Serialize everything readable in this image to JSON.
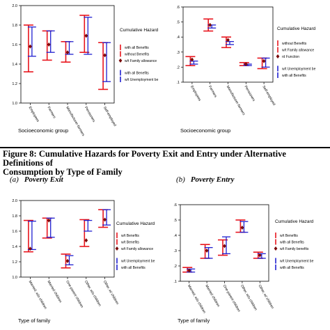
{
  "caption": {
    "line1": "Figure 8: Cumulative Hazards for Poverty Exit and Entry under Alternative Definitions of",
    "line2": "Consumption by Type of Family"
  },
  "panels": {
    "a": {
      "letter": "(a)",
      "title": "Poverty Exit"
    },
    "b": {
      "letter": "(b)",
      "title": "Poverty Entry"
    }
  },
  "colors": {
    "red": "#e8141c",
    "blue": "#1f1fd0",
    "marker": "#7a0a0a"
  },
  "chart_data": [
    {
      "id": "top-left",
      "type": "error-bar",
      "xlabel": "Socioeconomic group",
      "ylabel": "",
      "ylim": [
        1.0,
        2.0
      ],
      "yticks": [
        "1.0",
        "1.2",
        "1.4",
        "1.6",
        "1.8",
        "2.0"
      ],
      "categories": [
        "Employees",
        "Farmers",
        "Manufacturer-farmers",
        "Pensioners",
        "Self-employed"
      ],
      "series": [
        {
          "key": "red",
          "low": [
            1.32,
            1.44,
            1.42,
            1.52,
            1.14
          ],
          "high": [
            1.8,
            1.74,
            1.63,
            1.9,
            1.62
          ]
        },
        {
          "key": "blue",
          "low": [
            1.48,
            1.52,
            1.5,
            1.5,
            1.22
          ],
          "high": [
            1.78,
            1.74,
            1.63,
            1.88,
            1.62
          ]
        }
      ],
      "points": [
        1.58,
        1.6,
        1.52,
        1.69,
        1.49
      ],
      "legend_title": "Cumulative Hazard",
      "legend": [
        "with all Benefits",
        "without Benefits",
        "w/t Family allowance",
        "with all Benefits",
        "w/t Unemployment be"
      ]
    },
    {
      "id": "top-right",
      "type": "error-bar",
      "xlabel": "Socioeconomic group",
      "ylabel": "",
      "ylim": [
        0.1,
        0.6
      ],
      "yticks": [
        ".1",
        ".2",
        ".3",
        ".4",
        ".5",
        ".6"
      ],
      "categories": [
        "Employees",
        "Farmers",
        "Manufacturer-farmers",
        "Pensioners",
        "Self-employed"
      ],
      "series": [
        {
          "key": "red",
          "low": [
            0.21,
            0.44,
            0.33,
            0.21,
            0.19
          ],
          "high": [
            0.27,
            0.52,
            0.4,
            0.23,
            0.26
          ]
        },
        {
          "key": "blue",
          "low": [
            0.22,
            0.46,
            0.35,
            0.21,
            0.2
          ],
          "high": [
            0.24,
            0.48,
            0.37,
            0.22,
            0.26
          ]
        }
      ],
      "points": [
        0.25,
        0.48,
        0.38,
        0.22,
        0.24
      ],
      "legend_title": "Cumulative Hazard",
      "legend": [
        "without Benefits",
        "w/t Family allowance",
        "rd Function",
        "w/t Unemployment be",
        "with all Benefits"
      ]
    },
    {
      "id": "bottom-left",
      "type": "error-bar",
      "xlabel": "Type of family",
      "ylabel": "",
      "ylim": [
        1.0,
        2.0
      ],
      "yticks": [
        "1.0",
        "1.2",
        "1.4",
        "1.6",
        "1.8",
        "2.0"
      ],
      "categories": [
        "Married, w/o children",
        "Married children",
        "One-parent children",
        "Other, w/o children",
        "Other, w/ children"
      ],
      "series": [
        {
          "key": "red",
          "low": [
            1.33,
            1.51,
            1.12,
            1.4,
            1.65
          ],
          "high": [
            1.74,
            1.77,
            1.3,
            1.75,
            1.88
          ]
        },
        {
          "key": "blue",
          "low": [
            1.36,
            1.52,
            1.16,
            1.6,
            1.68
          ],
          "high": [
            1.73,
            1.77,
            1.28,
            1.74,
            1.88
          ]
        }
      ],
      "points": [
        1.37,
        1.74,
        1.21,
        1.48,
        1.75
      ],
      "legend_title": "Cumulative Hazard",
      "legend": [
        "w/t Benefits",
        "w/t Benefits",
        "w/t Family allowance",
        "w/t Unemployment be",
        "with all Benefits"
      ]
    },
    {
      "id": "bottom-right",
      "type": "error-bar",
      "xlabel": "Type of family",
      "ylabel": "",
      "ylim": [
        0.1,
        0.6
      ],
      "yticks": [
        ".1",
        ".2",
        ".3",
        ".4",
        ".5",
        ".6"
      ],
      "categories": [
        "Married, w/o children",
        "Married children",
        "One-parent children",
        "Other, w/o children",
        "Other, w/ children"
      ],
      "series": [
        {
          "key": "red",
          "low": [
            0.16,
            0.25,
            0.27,
            0.42,
            0.25
          ],
          "high": [
            0.19,
            0.34,
            0.37,
            0.5,
            0.29
          ]
        },
        {
          "key": "blue",
          "low": [
            0.16,
            0.25,
            0.28,
            0.42,
            0.25
          ],
          "high": [
            0.18,
            0.32,
            0.39,
            0.49,
            0.28
          ]
        }
      ],
      "points": [
        0.17,
        0.3,
        0.33,
        0.45,
        0.27
      ],
      "legend_title": "Cumulative Hazard",
      "legend": [
        "w/t Benefits",
        "with all Benefits",
        "w/t Family benefits",
        "w/t Unemployment be",
        "with all Benefits"
      ]
    }
  ]
}
